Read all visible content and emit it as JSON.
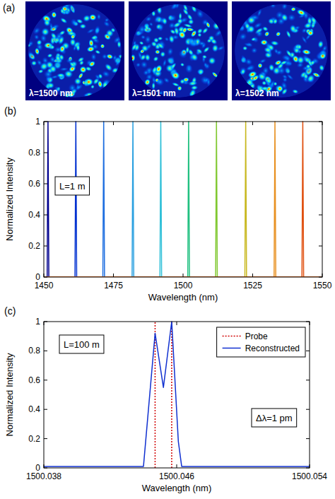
{
  "chart_data": [
    {
      "type": "image",
      "title": "(a)",
      "labels": [
        "λ=1500 nm",
        "λ=1501 nm",
        "λ=1502 nm"
      ]
    },
    {
      "type": "line",
      "title": "(b)",
      "x_label": "Wavelength (nm)",
      "y_label": "Normalized Intensity",
      "annotations": [
        "L=1 m"
      ],
      "xlim": [
        1450,
        1550
      ],
      "xticks": [
        1450,
        1475,
        1500,
        1525,
        1550
      ],
      "ylim": [
        0,
        1
      ],
      "yticks": [
        0,
        0.2,
        0.4,
        0.6,
        0.8,
        1
      ],
      "series": [
        {
          "color": "#00008f",
          "x": [
            1450,
            1451.2,
            1451.5,
            1451.8,
            1550
          ],
          "values": [
            0,
            0,
            1,
            0,
            0
          ]
        },
        {
          "color": "#0030d0",
          "x": [
            1450,
            1461.2,
            1461.5,
            1461.8,
            1550
          ],
          "values": [
            0,
            0,
            1,
            0,
            0
          ]
        },
        {
          "color": "#1f6fe0",
          "x": [
            1450,
            1471.2,
            1471.5,
            1471.8,
            1550
          ],
          "values": [
            0,
            0,
            1,
            0,
            0
          ]
        },
        {
          "color": "#2aa0e0",
          "x": [
            1450,
            1481.7,
            1482,
            1482.3,
            1550
          ],
          "values": [
            0,
            0,
            1,
            0,
            0
          ]
        },
        {
          "color": "#30c0d8",
          "x": [
            1450,
            1491.7,
            1492,
            1492.3,
            1550
          ],
          "values": [
            0,
            0,
            1,
            0,
            0
          ]
        },
        {
          "color": "#20c080",
          "x": [
            1450,
            1501.7,
            1502,
            1502.3,
            1550
          ],
          "values": [
            0,
            0,
            1,
            0,
            0
          ]
        },
        {
          "color": "#80c830",
          "x": [
            1450,
            1511.7,
            1512,
            1512.3,
            1550
          ],
          "values": [
            0,
            0,
            1,
            0,
            0
          ]
        },
        {
          "color": "#c8b820",
          "x": [
            1450,
            1522.2,
            1522.5,
            1522.8,
            1550
          ],
          "values": [
            0,
            0,
            1,
            0,
            0
          ]
        },
        {
          "color": "#e89020",
          "x": [
            1450,
            1532.7,
            1533,
            1533.3,
            1550
          ],
          "values": [
            0,
            0,
            1,
            0,
            0
          ]
        },
        {
          "color": "#e05010",
          "x": [
            1450,
            1542.7,
            1543,
            1543.3,
            1550
          ],
          "values": [
            0,
            0,
            1,
            0,
            0
          ]
        }
      ]
    },
    {
      "type": "line",
      "title": "(c)",
      "x_label": "Wavelength (nm)",
      "y_label": "Normalized Intensity",
      "annotations": [
        "L=100 m",
        "Δλ=1 pm"
      ],
      "xlim": [
        1500.038,
        1500.054
      ],
      "xticks": [
        1500.038,
        1500.046,
        1500.054
      ],
      "ylim": [
        0,
        1
      ],
      "yticks": [
        0,
        0.2,
        0.4,
        0.6,
        0.8,
        1
      ],
      "legend": "upper right",
      "series": [
        {
          "name": "Probe",
          "type": "stem",
          "color": "#d00000",
          "line_style": "dotted",
          "x": [
            1500.0447,
            1500.0457
          ],
          "values": [
            1,
            1
          ]
        },
        {
          "name": "Reconstructed",
          "type": "line",
          "color": "#1030d0",
          "line_style": "solid",
          "x": [
            1500.038,
            1500.044,
            1500.0447,
            1500.0452,
            1500.0457,
            1500.0461,
            1500.0463,
            1500.054
          ],
          "values": [
            0.01,
            0.01,
            0.92,
            0.55,
            1,
            0.18,
            0.01,
            0.01
          ]
        }
      ]
    }
  ]
}
